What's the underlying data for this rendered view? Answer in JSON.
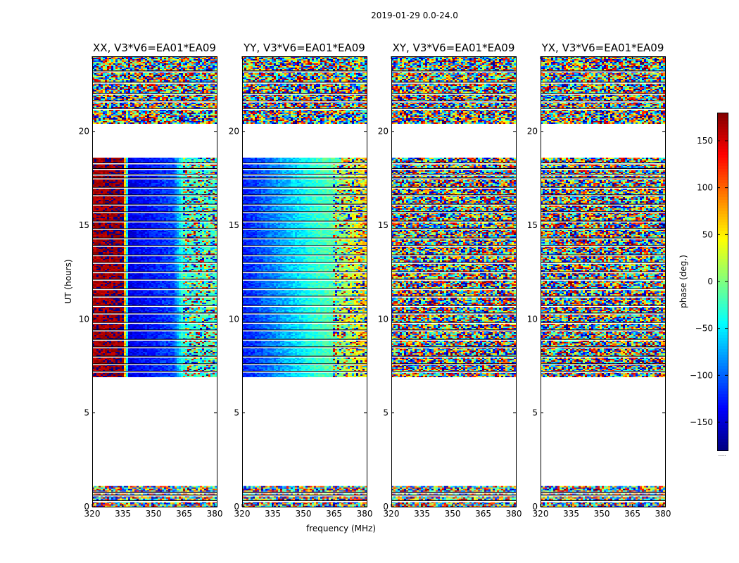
{
  "figure": {
    "suptitle": "2019-01-29 0.0-24.0",
    "xlabel": "frequency (MHz)",
    "ylabel": "UT (hours)",
    "colorbar_label": "phase (deg.)",
    "colorbar_footer": "......",
    "colors": {
      "background": "#ffffff",
      "frame": "#000000",
      "flagged": "#ffffff"
    }
  },
  "chart_data": {
    "type": "heatmap",
    "description_units": "phase in degrees vs frequency (MHz) and UT (hours)",
    "xlim": [
      320,
      381
    ],
    "ylim": [
      0,
      24
    ],
    "xticks": [
      320,
      335,
      350,
      365,
      380
    ],
    "xtick_labels": [
      "320",
      "335",
      "350",
      "365",
      "380"
    ],
    "yticks": [
      0,
      5,
      10,
      15,
      20
    ],
    "ytick_labels": [
      "0",
      "5",
      "10",
      "15",
      "20"
    ],
    "colorbar": {
      "colormap": "jet",
      "range": [
        -180,
        180
      ],
      "ticks": [
        150,
        100,
        50,
        0,
        -50,
        -100,
        -150
      ],
      "tick_labels": [
        "150",
        "100",
        "50",
        "0",
        "−50",
        "−100",
        "−150"
      ]
    },
    "data_time_blocks_hours": [
      [
        0.0,
        1.1
      ],
      [
        6.9,
        18.6
      ],
      [
        20.4,
        24.0
      ]
    ],
    "panels": [
      {
        "title": "XX, V3*V6=EA01*EA09",
        "baseline": "V3*V6=EA01*EA09",
        "polarization": "XX",
        "show_xlabel": false,
        "phase_trend_deg": [
          [
            320,
            165
          ],
          [
            335,
            175
          ],
          [
            338,
            -145
          ],
          [
            360,
            -110
          ],
          [
            364,
            -30
          ],
          [
            381,
            -20
          ]
        ],
        "noise_free_freq_max_mhz": 364,
        "coherent_hours": [
          6.9,
          18.6
        ]
      },
      {
        "title": "YY, V3*V6=EA01*EA09",
        "baseline": "V3*V6=EA01*EA09",
        "polarization": "YY",
        "show_xlabel": true,
        "phase_trend_deg": [
          [
            320,
            -130
          ],
          [
            340,
            -75
          ],
          [
            355,
            -30
          ],
          [
            364,
            -15
          ],
          [
            381,
            60
          ]
        ],
        "noise_free_freq_max_mhz": 364,
        "coherent_hours": [
          6.9,
          18.6
        ]
      },
      {
        "title": "XY, V3*V6=EA01*EA09",
        "baseline": "V3*V6=EA01*EA09",
        "polarization": "XY",
        "show_xlabel": false,
        "phase_trend_deg": [],
        "noise_free_freq_max_mhz": 320,
        "coherent_hours": []
      },
      {
        "title": "YX, V3*V6=EA01*EA09",
        "baseline": "V3*V6=EA01*EA09",
        "polarization": "YX",
        "show_xlabel": false,
        "phase_trend_deg": [],
        "noise_free_freq_max_mhz": 320,
        "coherent_hours": []
      }
    ]
  }
}
